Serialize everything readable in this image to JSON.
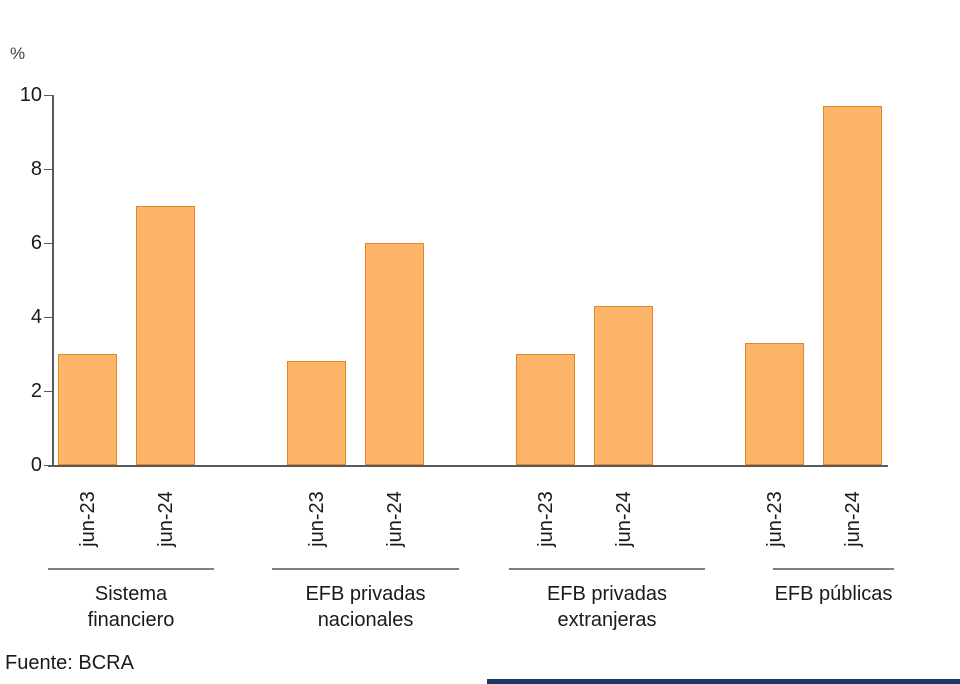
{
  "chart_data": {
    "type": "bar",
    "title": "",
    "ylabel": "%",
    "ylim": [
      0,
      10
    ],
    "ytick_interval": 2,
    "grid": false,
    "legend_position": "none",
    "categories": [
      "jun-23",
      "jun-24"
    ],
    "groups": [
      {
        "label": "Sistema financiero",
        "label_lines": [
          "Sistema",
          "financiero"
        ],
        "values": [
          3.0,
          7.0
        ]
      },
      {
        "label": "EFB privadas nacionales",
        "label_lines": [
          "EFB privadas",
          "nacionales"
        ],
        "values": [
          2.8,
          6.0
        ]
      },
      {
        "label": "EFB privadas extranjeras",
        "label_lines": [
          "EFB privadas",
          "extranjeras"
        ],
        "values": [
          3.0,
          4.3
        ]
      },
      {
        "label": "EFB públicas",
        "label_lines": [
          "EFB públicas"
        ],
        "values": [
          3.3,
          9.7
        ]
      }
    ],
    "colors": {
      "bar_fill": "#FCB469",
      "bar_border": "#E2852B",
      "axis": "#595959",
      "underline": "#808080",
      "text": "#1A1A1A"
    }
  },
  "footer": {
    "source": "Fuente: BCRA",
    "accent_bar_color": "#1F3864"
  }
}
